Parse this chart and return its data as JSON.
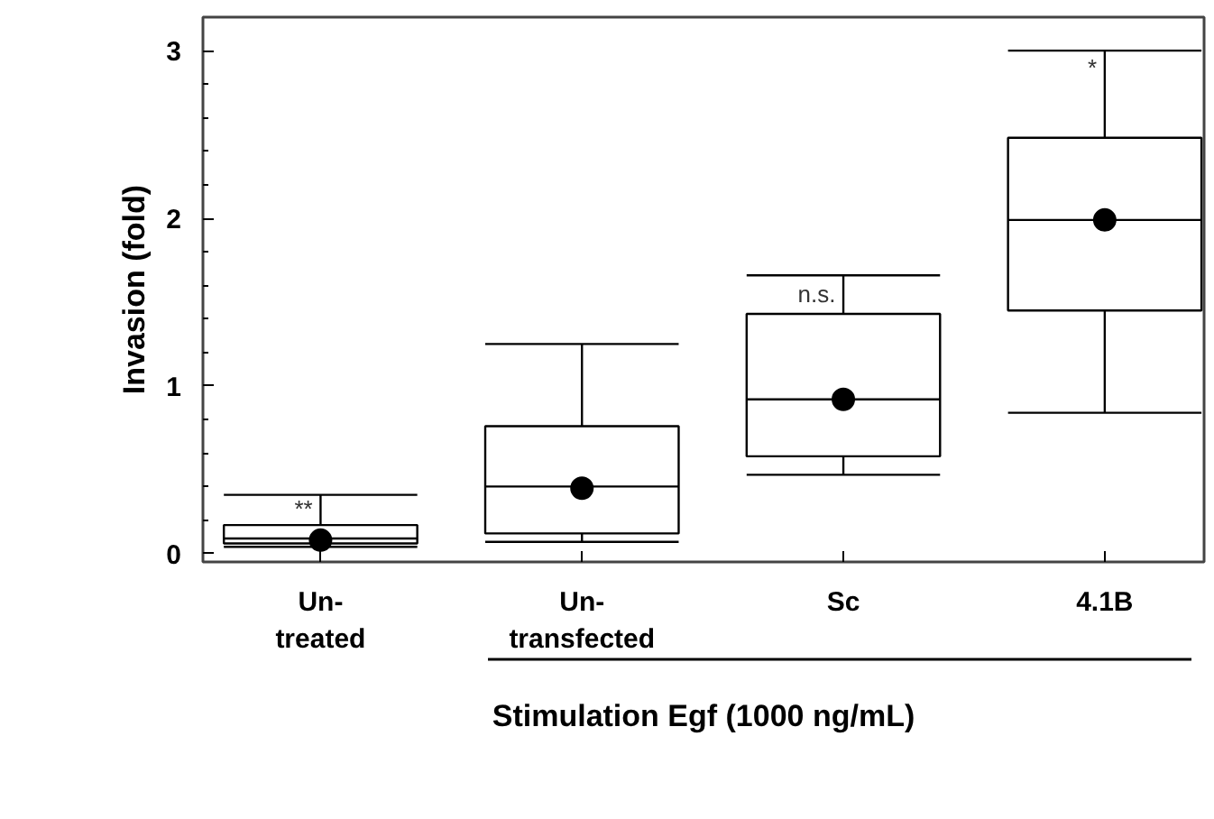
{
  "chart_data": {
    "type": "box",
    "categories": [
      "Un-\ntreated",
      "Un-\ntransfected",
      "Sc",
      "4.1B"
    ],
    "boxes": [
      {
        "low": 0.04,
        "q1": 0.06,
        "median": 0.09,
        "q3": 0.17,
        "high": 0.35,
        "mean": 0.08
      },
      {
        "low": 0.07,
        "q1": 0.12,
        "median": 0.4,
        "q3": 0.76,
        "high": 1.25,
        "mean": 0.39
      },
      {
        "low": 0.47,
        "q1": 0.58,
        "median": 0.92,
        "q3": 1.43,
        "high": 1.66,
        "mean": 0.92
      },
      {
        "low": 0.84,
        "q1": 1.45,
        "median": 1.99,
        "q3": 2.48,
        "high": 3.0,
        "mean": 1.99
      }
    ],
    "ylabel": "Invasion (fold)",
    "xlabel": "Stimulation Egf (1000 ng/mL)",
    "ylim": [
      -0.05,
      3.2
    ],
    "yticks": [
      0,
      1,
      2,
      3
    ],
    "color": "#000000",
    "grid": false,
    "marker": "circle",
    "annotations": [
      {
        "text": "**",
        "x": "Un-\ntreated",
        "y": 0.27
      },
      {
        "text": "n.s.",
        "x": "Sc",
        "y": 1.55
      },
      {
        "text": "*",
        "x": "4.1B",
        "y": 2.9
      }
    ]
  }
}
